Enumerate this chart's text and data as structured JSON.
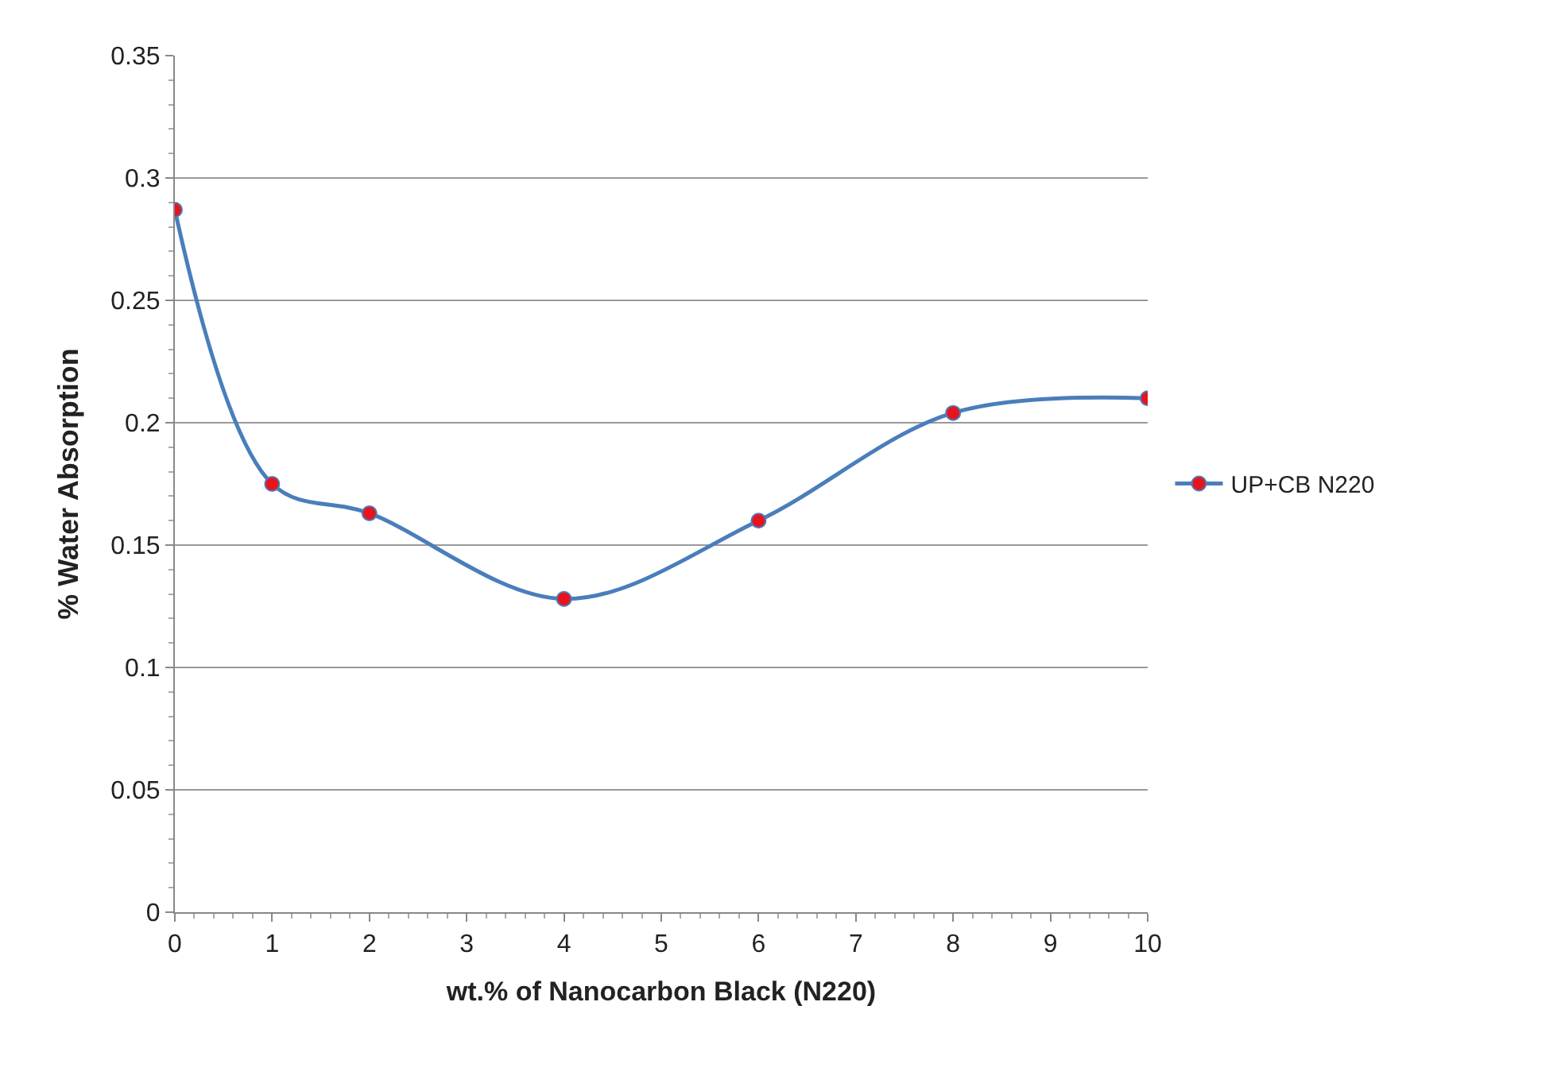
{
  "chart_data": {
    "type": "line",
    "xlabel": "wt.% of Nanocarbon Black (N220)",
    "ylabel": "% Water Absorption",
    "x": [
      0,
      1,
      2,
      4,
      6,
      8,
      10
    ],
    "series": [
      {
        "name": "UP+CB N220",
        "color": "#4a7ebb",
        "colors": [
          "#e8141c",
          "#e8141c",
          "#e8141c",
          "#e8141c",
          "#e8141c",
          "#e8141c",
          "#e8141c"
        ],
        "values": [
          0.287,
          0.175,
          0.163,
          0.128,
          0.16,
          0.204,
          0.21
        ]
      }
    ],
    "xlim": [
      0,
      10
    ],
    "xticks": [
      0,
      1,
      2,
      3,
      4,
      5,
      6,
      7,
      8,
      9,
      10
    ],
    "ylim": [
      0,
      0.35
    ],
    "yticks": [
      0,
      0.05,
      0.1,
      0.15,
      0.2,
      0.25,
      0.3,
      0.35
    ],
    "grid": "y",
    "legend": "right",
    "marker": "circle",
    "line_style": "solid"
  }
}
